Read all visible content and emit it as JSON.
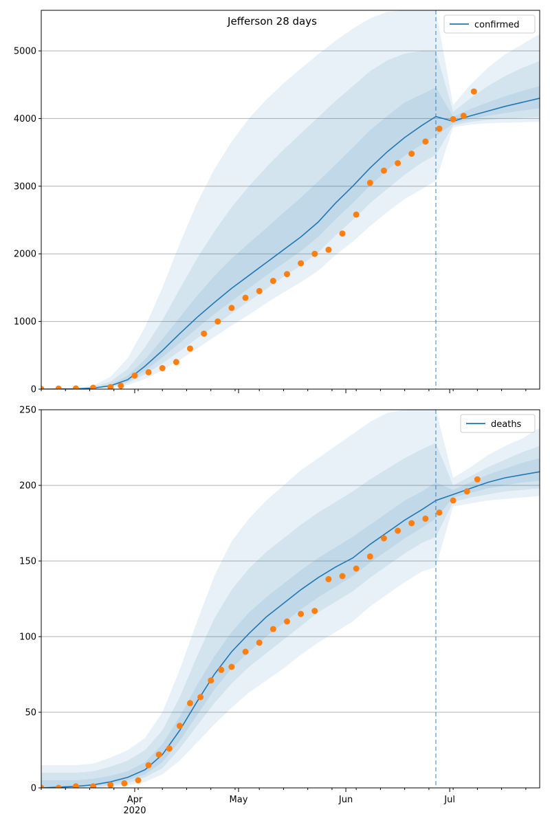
{
  "title": "Jefferson 28 days",
  "x_axis": {
    "major_ticks": [
      {
        "date": "2020-04-01",
        "label": "Apr"
      },
      {
        "date": "2020-05-01",
        "label": "May"
      },
      {
        "date": "2020-06-01",
        "label": "Jun"
      },
      {
        "date": "2020-07-01",
        "label": "Jul"
      }
    ],
    "year_label": "2020"
  },
  "colors": {
    "model_line": "#1f77b4",
    "observed": "#ff7f0e",
    "band": "#1f77b4",
    "grid": "#b0b0b0"
  },
  "chart_data": [
    {
      "type": "line",
      "legend": "confirmed",
      "legend_position": "top-right",
      "grid": "horizontal",
      "ylim": [
        0,
        5600
      ],
      "yticks": [
        0,
        1000,
        2000,
        3000,
        4000,
        5000
      ],
      "xlim": [
        "2020-03-05",
        "2020-07-27"
      ],
      "forecast_start": "2020-06-27",
      "model": {
        "x": [
          "2020-03-05",
          "2020-03-10",
          "2020-03-15",
          "2020-03-20",
          "2020-03-25",
          "2020-03-30",
          "2020-04-04",
          "2020-04-09",
          "2020-04-14",
          "2020-04-19",
          "2020-04-24",
          "2020-04-29",
          "2020-05-04",
          "2020-05-09",
          "2020-05-14",
          "2020-05-19",
          "2020-05-24",
          "2020-05-29",
          "2020-06-03",
          "2020-06-08",
          "2020-06-13",
          "2020-06-18",
          "2020-06-23",
          "2020-06-27",
          "2020-07-02",
          "2020-07-07",
          "2020-07-12",
          "2020-07-17",
          "2020-07-22",
          "2020-07-27"
        ],
        "y": [
          0,
          2,
          5,
          15,
          50,
          140,
          340,
          570,
          820,
          1060,
          1280,
          1490,
          1680,
          1870,
          2060,
          2250,
          2470,
          2750,
          3000,
          3270,
          3510,
          3720,
          3900,
          4030,
          3960,
          4040,
          4110,
          4180,
          4240,
          4300
        ]
      },
      "band_lower": {
        "outer": [
          0,
          0,
          0,
          5,
          20,
          60,
          150,
          280,
          430,
          600,
          770,
          940,
          1100,
          1270,
          1430,
          1580,
          1750,
          1980,
          2180,
          2410,
          2620,
          2810,
          2960,
          3080,
          3870,
          3910,
          3930,
          3940,
          3945,
          3950
        ],
        "middle": [
          0,
          0,
          2,
          8,
          30,
          90,
          220,
          380,
          560,
          750,
          930,
          1120,
          1300,
          1480,
          1660,
          1830,
          2020,
          2270,
          2500,
          2750,
          2960,
          3170,
          3350,
          3460,
          3900,
          3950,
          3980,
          4000,
          4010,
          4020
        ],
        "inner": [
          0,
          1,
          3,
          11,
          38,
          110,
          270,
          470,
          680,
          900,
          1110,
          1300,
          1490,
          1680,
          1860,
          2040,
          2250,
          2510,
          2750,
          3010,
          3240,
          3450,
          3620,
          3740,
          3930,
          3990,
          4040,
          4080,
          4120,
          4150
        ]
      },
      "band_upper": {
        "outer": [
          0,
          4,
          15,
          55,
          180,
          460,
          920,
          1500,
          2150,
          2750,
          3250,
          3660,
          4000,
          4280,
          4520,
          4740,
          4950,
          5150,
          5330,
          5480,
          5580,
          5600,
          5600,
          5600,
          4200,
          4500,
          4750,
          4950,
          5100,
          5250
        ],
        "middle": [
          0,
          3,
          10,
          35,
          110,
          300,
          620,
          1020,
          1480,
          1930,
          2330,
          2690,
          3000,
          3280,
          3540,
          3780,
          4020,
          4260,
          4480,
          4700,
          4860,
          4960,
          5000,
          5000,
          4100,
          4300,
          4480,
          4630,
          4750,
          4850
        ],
        "inner": [
          0,
          2,
          7,
          22,
          70,
          200,
          440,
          740,
          1060,
          1380,
          1670,
          1930,
          2160,
          2380,
          2610,
          2830,
          3070,
          3320,
          3570,
          3830,
          4040,
          4240,
          4360,
          4460,
          4030,
          4140,
          4240,
          4330,
          4410,
          4480
        ]
      },
      "observed": {
        "x": [
          "2020-03-05",
          "2020-03-10",
          "2020-03-15",
          "2020-03-20",
          "2020-03-25",
          "2020-03-28",
          "2020-04-01",
          "2020-04-05",
          "2020-04-09",
          "2020-04-13",
          "2020-04-17",
          "2020-04-21",
          "2020-04-25",
          "2020-04-29",
          "2020-05-03",
          "2020-05-07",
          "2020-05-11",
          "2020-05-15",
          "2020-05-19",
          "2020-05-23",
          "2020-05-27",
          "2020-05-31",
          "2020-06-04",
          "2020-06-08",
          "2020-06-12",
          "2020-06-16",
          "2020-06-20",
          "2020-06-24",
          "2020-06-28",
          "2020-07-02",
          "2020-07-05",
          "2020-07-08"
        ],
        "y": [
          3,
          8,
          10,
          20,
          30,
          50,
          200,
          250,
          310,
          400,
          600,
          820,
          1000,
          1200,
          1350,
          1450,
          1600,
          1700,
          1860,
          2000,
          2060,
          2300,
          2580,
          3050,
          3230,
          3340,
          3480,
          3660,
          3850,
          3990,
          4040,
          4400
        ]
      }
    },
    {
      "type": "line",
      "legend": "deaths",
      "legend_position": "top-right",
      "grid": "horizontal",
      "ylim": [
        0,
        250
      ],
      "yticks": [
        0,
        50,
        100,
        150,
        200,
        250
      ],
      "xlim": [
        "2020-03-05",
        "2020-07-27"
      ],
      "forecast_start": "2020-06-27",
      "model": {
        "x": [
          "2020-03-05",
          "2020-03-10",
          "2020-03-15",
          "2020-03-20",
          "2020-03-25",
          "2020-03-30",
          "2020-04-04",
          "2020-04-09",
          "2020-04-14",
          "2020-04-19",
          "2020-04-24",
          "2020-04-29",
          "2020-05-04",
          "2020-05-09",
          "2020-05-14",
          "2020-05-19",
          "2020-05-24",
          "2020-05-29",
          "2020-06-03",
          "2020-06-08",
          "2020-06-13",
          "2020-06-18",
          "2020-06-23",
          "2020-06-27",
          "2020-07-02",
          "2020-07-07",
          "2020-07-12",
          "2020-07-17",
          "2020-07-22",
          "2020-07-27"
        ],
        "y": [
          0,
          0.5,
          1,
          2,
          4,
          7,
          12,
          22,
          38,
          57,
          75,
          90,
          102,
          113,
          122,
          131,
          139,
          146,
          152,
          161,
          169,
          177,
          184,
          190,
          194,
          198,
          202,
          205,
          207,
          209
        ]
      },
      "band_lower": {
        "outer": [
          0,
          0,
          0,
          0,
          0.5,
          1.5,
          4,
          9,
          18,
          30,
          42,
          53,
          63,
          71,
          79,
          88,
          96,
          103,
          110,
          120,
          128,
          136,
          143,
          146,
          186,
          188,
          190,
          191,
          192,
          193
        ],
        "middle": [
          0,
          0,
          0,
          0.5,
          1.5,
          3,
          7,
          13,
          26,
          41,
          56,
          69,
          80,
          89,
          98,
          107,
          116,
          123,
          130,
          139,
          147,
          155,
          162,
          166,
          189,
          192,
          194,
          196,
          197,
          198
        ],
        "inner": [
          0,
          0,
          0.5,
          1,
          2.5,
          5,
          9,
          17,
          31,
          48,
          65,
          79,
          90,
          100,
          109,
          118,
          126,
          133,
          140,
          149,
          157,
          165,
          172,
          178,
          192,
          195,
          198,
          200,
          202,
          203
        ]
      },
      "band_upper": {
        "outer": [
          15,
          15,
          15,
          16,
          20,
          25,
          33,
          50,
          78,
          110,
          140,
          163,
          178,
          190,
          200,
          210,
          218,
          226,
          234,
          242,
          248,
          250,
          250,
          250,
          205,
          212,
          220,
          226,
          231,
          238
        ],
        "middle": [
          10,
          10,
          10,
          11,
          14,
          18,
          25,
          38,
          60,
          87,
          112,
          131,
          145,
          156,
          165,
          174,
          182,
          189,
          196,
          204,
          211,
          218,
          224,
          228,
          200,
          206,
          212,
          217,
          222,
          226
        ],
        "inner": [
          5,
          5,
          5,
          6,
          8,
          11,
          17,
          29,
          47,
          68,
          87,
          103,
          116,
          126,
          135,
          144,
          152,
          159,
          166,
          174,
          182,
          190,
          196,
          202,
          197,
          202,
          207,
          211,
          215,
          218
        ]
      },
      "observed": {
        "x": [
          "2020-03-05",
          "2020-03-10",
          "2020-03-15",
          "2020-03-20",
          "2020-03-25",
          "2020-03-29",
          "2020-04-02",
          "2020-04-05",
          "2020-04-08",
          "2020-04-11",
          "2020-04-14",
          "2020-04-17",
          "2020-04-20",
          "2020-04-23",
          "2020-04-26",
          "2020-04-29",
          "2020-05-03",
          "2020-05-07",
          "2020-05-11",
          "2020-05-15",
          "2020-05-19",
          "2020-05-23",
          "2020-05-27",
          "2020-05-31",
          "2020-06-04",
          "2020-06-08",
          "2020-06-12",
          "2020-06-16",
          "2020-06-20",
          "2020-06-24",
          "2020-06-28",
          "2020-07-02",
          "2020-07-06",
          "2020-07-09"
        ],
        "y": [
          0,
          0,
          1,
          1,
          2,
          3,
          5,
          15,
          22,
          26,
          41,
          56,
          60,
          71,
          78,
          80,
          90,
          96,
          105,
          110,
          115,
          117,
          138,
          140,
          145,
          153,
          165,
          170,
          175,
          178,
          182,
          190,
          196,
          204
        ]
      }
    }
  ]
}
